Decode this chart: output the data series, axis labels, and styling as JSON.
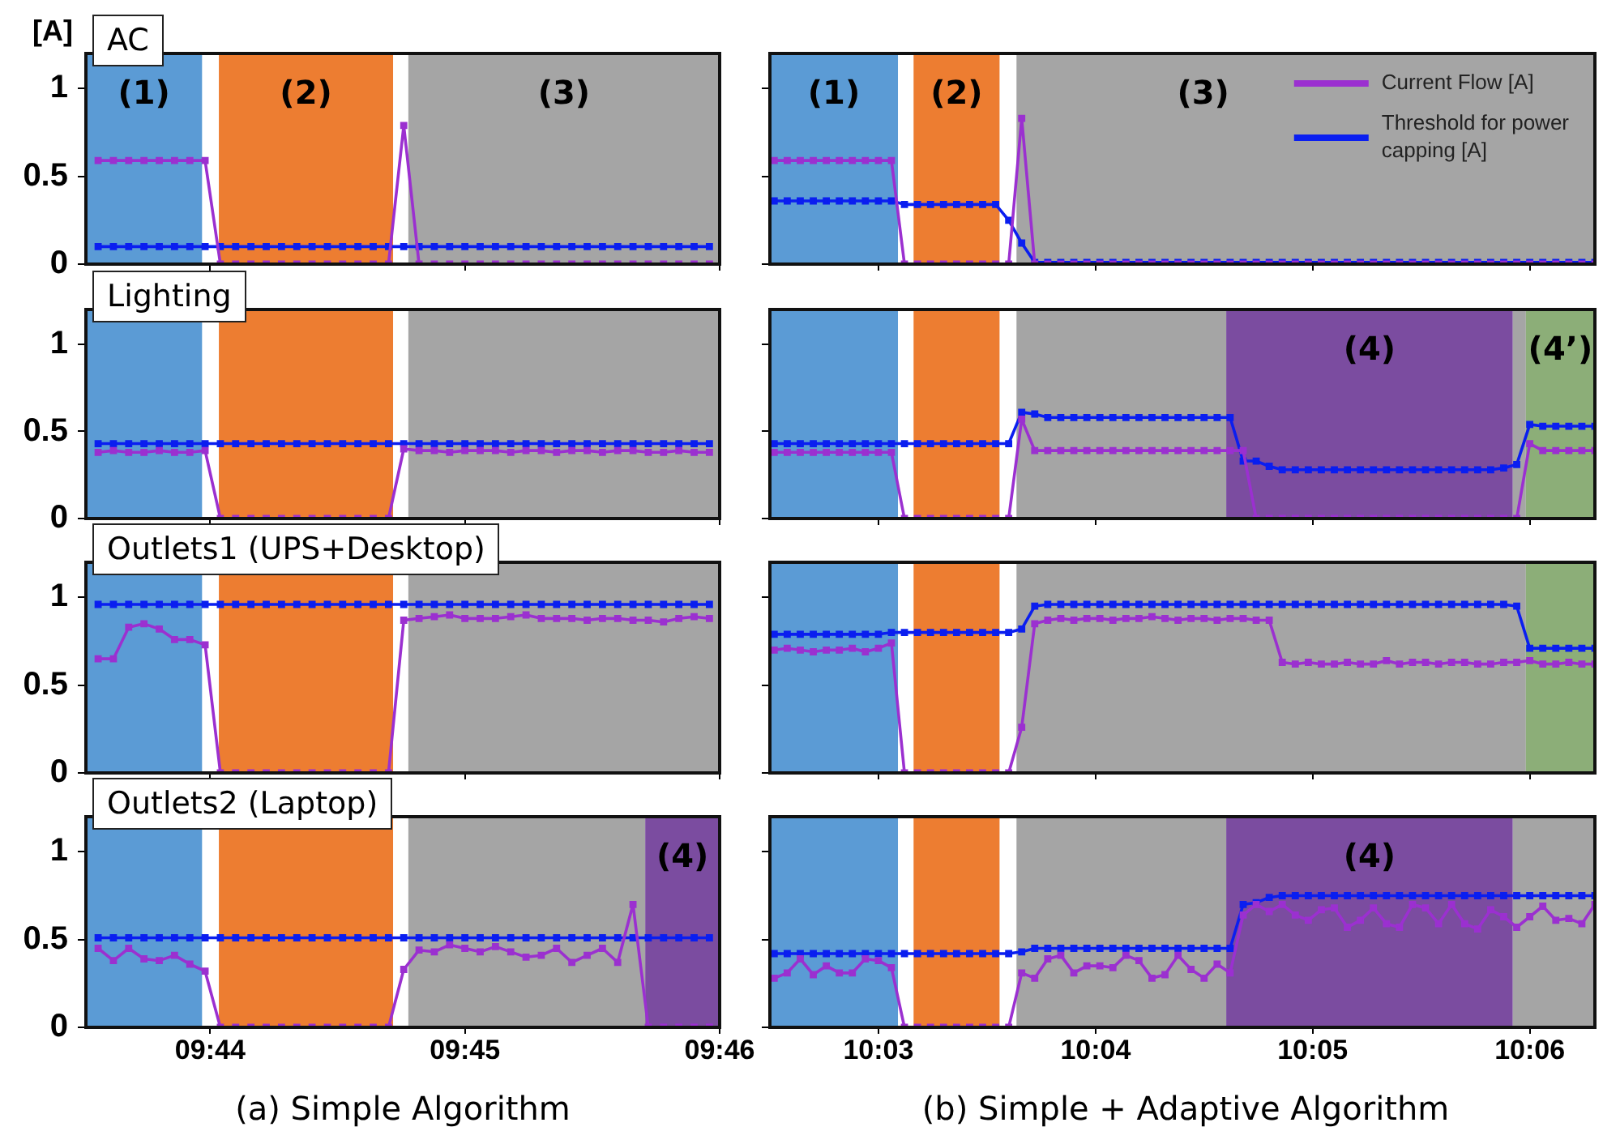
{
  "chart_data": [
    {
      "type": "line",
      "title": "AC",
      "ylabel": "[A]",
      "x": [
        9.726,
        9.727,
        9.728,
        9.729,
        9.73,
        9.731,
        9.732,
        9.733,
        9.734,
        9.735,
        9.736,
        9.737,
        9.738,
        9.739,
        9.74,
        9.741,
        9.742,
        9.743,
        9.744,
        9.745,
        9.746,
        9.747,
        9.748,
        9.749,
        9.75,
        9.751,
        9.752,
        9.753,
        9.754,
        9.755,
        9.756,
        9.757,
        9.758,
        9.759,
        9.76,
        9.761,
        9.762,
        9.763,
        9.764,
        9.765,
        9.766
      ],
      "series": [
        {
          "color": "#9b30d0",
          "values": [
            0.59,
            0.59,
            0.59,
            0.59,
            0.59,
            0.59,
            0.59,
            0.59,
            0,
            0,
            0,
            0,
            0,
            0,
            0,
            0,
            0,
            0,
            0,
            0,
            0.79,
            0,
            0,
            0,
            0,
            0,
            0,
            0,
            0,
            0,
            0,
            0,
            0,
            0,
            0,
            0,
            0,
            0,
            0,
            0,
            0
          ]
        },
        {
          "color": "#0a1ef0",
          "values": [
            0.1,
            0.1,
            0.1,
            0.1,
            0.1,
            0.1,
            0.1,
            0.1,
            0.1,
            0.1,
            0.1,
            0.1,
            0.1,
            0.1,
            0.1,
            0.1,
            0.1,
            0.1,
            0.1,
            0.1,
            0.1,
            0.1,
            0.1,
            0.1,
            0.1,
            0.1,
            0.1,
            0.1,
            0.1,
            0.1,
            0.1,
            0.1,
            0.1,
            0.1,
            0.1,
            0.1,
            0.1,
            0.1,
            0.1,
            0.1,
            0.1
          ]
        }
      ],
      "xlim": [
        9.7252,
        9.76667
      ],
      "xticks": [
        {
          "value": 9.73333,
          "label": null
        },
        {
          "value": 9.75,
          "label": null
        },
        {
          "value": 9.76667,
          "label": null
        }
      ],
      "ylim": [
        0,
        1.2
      ],
      "yticks": [
        0,
        0.5,
        1
      ],
      "tick_labels": "y",
      "marker": "square",
      "line_style": "solid",
      "bands": [
        {
          "axis": "x",
          "from": 9.7252,
          "to": 9.7328,
          "label": "(1)",
          "color": "#5b9bd5"
        },
        {
          "axis": "x",
          "from": 9.7339,
          "to": 9.7453,
          "label": "(2)",
          "color": "#ed7d31"
        },
        {
          "axis": "x",
          "from": 9.7463,
          "to": 9.76667,
          "label": "(3)",
          "color": "#a5a5a5"
        }
      ]
    },
    {
      "type": "line",
      "x": [
        10.042,
        10.043,
        10.044,
        10.045,
        10.046,
        10.047,
        10.048,
        10.049,
        10.05,
        10.051,
        10.052,
        10.053,
        10.054,
        10.055,
        10.056,
        10.057,
        10.058,
        10.059,
        10.06,
        10.061,
        10.062,
        10.063,
        10.064,
        10.065,
        10.066,
        10.067,
        10.068,
        10.069,
        10.07,
        10.071,
        10.072,
        10.073,
        10.074,
        10.075,
        10.076,
        10.077,
        10.078,
        10.079,
        10.08,
        10.081,
        10.082,
        10.083,
        10.084,
        10.085,
        10.086,
        10.087,
        10.088,
        10.089,
        10.09,
        10.091,
        10.092,
        10.093,
        10.094,
        10.095,
        10.096,
        10.097,
        10.098,
        10.099,
        10.1,
        10.101,
        10.102,
        10.103,
        10.104,
        10.105
      ],
      "series": [
        {
          "name": "Current Flow [A]",
          "color": "#9b30d0",
          "values": [
            0.59,
            0.59,
            0.59,
            0.59,
            0.59,
            0.59,
            0.59,
            0.59,
            0.59,
            0.59,
            0,
            0,
            0,
            0,
            0,
            0,
            0,
            0,
            0,
            0.83,
            0,
            0,
            0,
            0,
            0,
            0,
            0,
            0,
            0,
            0,
            0,
            0,
            0,
            0,
            0,
            0,
            0,
            0,
            0,
            0,
            0,
            0,
            0,
            0,
            0,
            0,
            0,
            0,
            0,
            0,
            0,
            0,
            0,
            0,
            0,
            0,
            0,
            0,
            0,
            0,
            0,
            0,
            0,
            0
          ]
        },
        {
          "name": "Threshold for power capping [A]",
          "color": "#0a1ef0",
          "values": [
            0.36,
            0.36,
            0.36,
            0.36,
            0.36,
            0.36,
            0.36,
            0.36,
            0.36,
            0.36,
            0.34,
            0.34,
            0.34,
            0.34,
            0.34,
            0.34,
            0.34,
            0.34,
            0.25,
            0.12,
            0.01,
            0.01,
            0.01,
            0.01,
            0.01,
            0.01,
            0.01,
            0.01,
            0.01,
            0.01,
            0.01,
            0.01,
            0.01,
            0.01,
            0.01,
            0.01,
            0.01,
            0.01,
            0.01,
            0.01,
            0.01,
            0.01,
            0.01,
            0.01,
            0.01,
            0.01,
            0.01,
            0.01,
            0.01,
            0.01,
            0.01,
            0.01,
            0.01,
            0.01,
            0.01,
            0.01,
            0.01,
            0.01,
            0.01,
            0.01,
            0.01,
            0.01,
            0.01,
            0.01
          ]
        }
      ],
      "xlim": [
        10.04167,
        10.105
      ],
      "xticks": [
        {
          "value": 10.05,
          "label": null
        },
        {
          "value": 10.06667,
          "label": null
        },
        {
          "value": 10.08333,
          "label": null
        },
        {
          "value": 10.1,
          "label": null
        }
      ],
      "ylim": [
        0,
        1.2
      ],
      "yticks": [
        0,
        0.5,
        1
      ],
      "tick_labels": false,
      "marker": "square",
      "line_style": "solid",
      "legend": "top right",
      "bands": [
        {
          "axis": "x",
          "from": 10.04167,
          "to": 10.0515,
          "label": "(1)",
          "color": "#5b9bd5"
        },
        {
          "axis": "x",
          "from": 10.0527,
          "to": 10.0593,
          "label": "(2)",
          "color": "#ed7d31"
        },
        {
          "axis": "x",
          "from": 10.0606,
          "to": 10.105,
          "label": "(3)",
          "color": "#a5a5a5"
        }
      ]
    },
    {
      "type": "line",
      "title": "Lighting",
      "x": [
        9.726,
        9.727,
        9.728,
        9.729,
        9.73,
        9.731,
        9.732,
        9.733,
        9.734,
        9.735,
        9.736,
        9.737,
        9.738,
        9.739,
        9.74,
        9.741,
        9.742,
        9.743,
        9.744,
        9.745,
        9.746,
        9.747,
        9.748,
        9.749,
        9.75,
        9.751,
        9.752,
        9.753,
        9.754,
        9.755,
        9.756,
        9.757,
        9.758,
        9.759,
        9.76,
        9.761,
        9.762,
        9.763,
        9.764,
        9.765,
        9.766
      ],
      "series": [
        {
          "color": "#9b30d0",
          "values": [
            0.38,
            0.39,
            0.38,
            0.38,
            0.39,
            0.38,
            0.38,
            0.39,
            0,
            0,
            0,
            0,
            0,
            0,
            0,
            0,
            0,
            0,
            0,
            0,
            0.4,
            0.39,
            0.39,
            0.38,
            0.39,
            0.39,
            0.39,
            0.38,
            0.39,
            0.39,
            0.38,
            0.39,
            0.39,
            0.38,
            0.39,
            0.39,
            0.38,
            0.38,
            0.39,
            0.38,
            0.38
          ]
        },
        {
          "color": "#0a1ef0",
          "values": [
            0.43,
            0.43,
            0.43,
            0.43,
            0.43,
            0.43,
            0.43,
            0.43,
            0.43,
            0.43,
            0.43,
            0.43,
            0.43,
            0.43,
            0.43,
            0.43,
            0.43,
            0.43,
            0.43,
            0.43,
            0.43,
            0.43,
            0.43,
            0.43,
            0.43,
            0.43,
            0.43,
            0.43,
            0.43,
            0.43,
            0.43,
            0.43,
            0.43,
            0.43,
            0.43,
            0.43,
            0.43,
            0.43,
            0.43,
            0.43,
            0.43
          ]
        }
      ],
      "xlim": [
        9.7252,
        9.76667
      ],
      "xticks": [
        {
          "value": 9.73333,
          "label": null
        },
        {
          "value": 9.75,
          "label": null
        },
        {
          "value": 9.76667,
          "label": null
        }
      ],
      "ylim": [
        0,
        1.2
      ],
      "yticks": [
        0,
        0.5,
        1
      ],
      "tick_labels": "y",
      "marker": "square",
      "line_style": "solid",
      "bands": [
        {
          "axis": "x",
          "from": 9.7252,
          "to": 9.7328,
          "color": "#5b9bd5"
        },
        {
          "axis": "x",
          "from": 9.7339,
          "to": 9.7453,
          "color": "#ed7d31"
        },
        {
          "axis": "x",
          "from": 9.7463,
          "to": 9.76667,
          "color": "#a5a5a5"
        }
      ]
    },
    {
      "type": "line",
      "x": [
        10.042,
        10.043,
        10.044,
        10.045,
        10.046,
        10.047,
        10.048,
        10.049,
        10.05,
        10.051,
        10.052,
        10.053,
        10.054,
        10.055,
        10.056,
        10.057,
        10.058,
        10.059,
        10.06,
        10.061,
        10.062,
        10.063,
        10.064,
        10.065,
        10.066,
        10.067,
        10.068,
        10.069,
        10.07,
        10.071,
        10.072,
        10.073,
        10.074,
        10.075,
        10.076,
        10.077,
        10.078,
        10.079,
        10.08,
        10.081,
        10.082,
        10.083,
        10.084,
        10.085,
        10.086,
        10.087,
        10.088,
        10.089,
        10.09,
        10.091,
        10.092,
        10.093,
        10.094,
        10.095,
        10.096,
        10.097,
        10.098,
        10.099,
        10.1,
        10.101,
        10.102,
        10.103,
        10.104,
        10.105
      ],
      "series": [
        {
          "color": "#9b30d0",
          "values": [
            0.38,
            0.38,
            0.38,
            0.38,
            0.38,
            0.38,
            0.38,
            0.38,
            0.38,
            0.38,
            0,
            0,
            0,
            0,
            0,
            0,
            0,
            0,
            0,
            0.57,
            0.39,
            0.39,
            0.39,
            0.39,
            0.39,
            0.39,
            0.39,
            0.39,
            0.39,
            0.39,
            0.39,
            0.39,
            0.39,
            0.39,
            0.39,
            0.39,
            0.39,
            0,
            0,
            0,
            0,
            0,
            0,
            0,
            0,
            0,
            0,
            0,
            0,
            0,
            0,
            0,
            0,
            0,
            0,
            0,
            0,
            0,
            0.43,
            0.39,
            0.39,
            0.39,
            0.39,
            0.39
          ]
        },
        {
          "color": "#0a1ef0",
          "values": [
            0.43,
            0.43,
            0.43,
            0.43,
            0.43,
            0.43,
            0.43,
            0.43,
            0.43,
            0.43,
            0.43,
            0.43,
            0.43,
            0.43,
            0.43,
            0.43,
            0.43,
            0.43,
            0.43,
            0.61,
            0.6,
            0.58,
            0.58,
            0.58,
            0.58,
            0.58,
            0.58,
            0.58,
            0.58,
            0.58,
            0.58,
            0.58,
            0.58,
            0.58,
            0.58,
            0.58,
            0.33,
            0.33,
            0.3,
            0.28,
            0.28,
            0.28,
            0.28,
            0.28,
            0.28,
            0.28,
            0.28,
            0.28,
            0.28,
            0.28,
            0.28,
            0.28,
            0.28,
            0.28,
            0.28,
            0.28,
            0.29,
            0.31,
            0.54,
            0.53,
            0.53,
            0.53,
            0.53,
            0.53
          ]
        }
      ],
      "xlim": [
        10.04167,
        10.105
      ],
      "xticks": [
        {
          "value": 10.05,
          "label": null
        },
        {
          "value": 10.06667,
          "label": null
        },
        {
          "value": 10.08333,
          "label": null
        },
        {
          "value": 10.1,
          "label": null
        }
      ],
      "ylim": [
        0,
        1.2
      ],
      "yticks": [
        0,
        0.5,
        1
      ],
      "tick_labels": false,
      "marker": "square",
      "line_style": "solid",
      "bands": [
        {
          "axis": "x",
          "from": 10.04167,
          "to": 10.0515,
          "color": "#5b9bd5"
        },
        {
          "axis": "x",
          "from": 10.0527,
          "to": 10.0593,
          "color": "#ed7d31"
        },
        {
          "axis": "x",
          "from": 10.0606,
          "to": 10.0767,
          "color": "#a5a5a5"
        },
        {
          "axis": "x",
          "from": 10.0767,
          "to": 10.0987,
          "label": "(4)",
          "color": "#7b4ca0"
        },
        {
          "axis": "x",
          "from": 10.0987,
          "to": 10.0997,
          "color": "#a5a5a5"
        },
        {
          "axis": "x",
          "from": 10.0997,
          "to": 10.105,
          "label": "(4’)",
          "color": "#8cae78"
        }
      ]
    },
    {
      "type": "line",
      "title": "Outlets1 (UPS+Desktop)",
      "x": [
        9.726,
        9.727,
        9.728,
        9.729,
        9.73,
        9.731,
        9.732,
        9.733,
        9.734,
        9.735,
        9.736,
        9.737,
        9.738,
        9.739,
        9.74,
        9.741,
        9.742,
        9.743,
        9.744,
        9.745,
        9.746,
        9.747,
        9.748,
        9.749,
        9.75,
        9.751,
        9.752,
        9.753,
        9.754,
        9.755,
        9.756,
        9.757,
        9.758,
        9.759,
        9.76,
        9.761,
        9.762,
        9.763,
        9.764,
        9.765,
        9.766
      ],
      "series": [
        {
          "color": "#9b30d0",
          "values": [
            0.65,
            0.65,
            0.83,
            0.85,
            0.82,
            0.76,
            0.76,
            0.73,
            0,
            0,
            0,
            0,
            0,
            0,
            0,
            0,
            0,
            0,
            0,
            0,
            0.87,
            0.88,
            0.89,
            0.9,
            0.88,
            0.88,
            0.88,
            0.89,
            0.9,
            0.88,
            0.88,
            0.88,
            0.87,
            0.88,
            0.88,
            0.87,
            0.87,
            0.86,
            0.88,
            0.89,
            0.88
          ]
        },
        {
          "color": "#0a1ef0",
          "values": [
            0.96,
            0.96,
            0.96,
            0.96,
            0.96,
            0.96,
            0.96,
            0.96,
            0.96,
            0.96,
            0.96,
            0.96,
            0.96,
            0.96,
            0.96,
            0.96,
            0.96,
            0.96,
            0.96,
            0.96,
            0.96,
            0.96,
            0.96,
            0.96,
            0.96,
            0.96,
            0.96,
            0.96,
            0.96,
            0.96,
            0.96,
            0.96,
            0.96,
            0.96,
            0.96,
            0.96,
            0.96,
            0.96,
            0.96,
            0.96,
            0.96
          ]
        }
      ],
      "xlim": [
        9.7252,
        9.76667
      ],
      "xticks": [
        {
          "value": 9.73333,
          "label": null
        },
        {
          "value": 9.75,
          "label": null
        },
        {
          "value": 9.76667,
          "label": null
        }
      ],
      "ylim": [
        0,
        1.2
      ],
      "yticks": [
        0,
        0.5,
        1
      ],
      "tick_labels": "y",
      "marker": "square",
      "line_style": "solid",
      "bands": [
        {
          "axis": "x",
          "from": 9.7252,
          "to": 9.7328,
          "color": "#5b9bd5"
        },
        {
          "axis": "x",
          "from": 9.7339,
          "to": 9.7453,
          "color": "#ed7d31"
        },
        {
          "axis": "x",
          "from": 9.7463,
          "to": 9.76667,
          "color": "#a5a5a5"
        }
      ]
    },
    {
      "type": "line",
      "x": [
        10.042,
        10.043,
        10.044,
        10.045,
        10.046,
        10.047,
        10.048,
        10.049,
        10.05,
        10.051,
        10.052,
        10.053,
        10.054,
        10.055,
        10.056,
        10.057,
        10.058,
        10.059,
        10.06,
        10.061,
        10.062,
        10.063,
        10.064,
        10.065,
        10.066,
        10.067,
        10.068,
        10.069,
        10.07,
        10.071,
        10.072,
        10.073,
        10.074,
        10.075,
        10.076,
        10.077,
        10.078,
        10.079,
        10.08,
        10.081,
        10.082,
        10.083,
        10.084,
        10.085,
        10.086,
        10.087,
        10.088,
        10.089,
        10.09,
        10.091,
        10.092,
        10.093,
        10.094,
        10.095,
        10.096,
        10.097,
        10.098,
        10.099,
        10.1,
        10.101,
        10.102,
        10.103,
        10.104,
        10.105
      ],
      "series": [
        {
          "color": "#9b30d0",
          "values": [
            0.7,
            0.71,
            0.7,
            0.69,
            0.7,
            0.7,
            0.71,
            0.69,
            0.71,
            0.74,
            0,
            0,
            0,
            0,
            0,
            0,
            0,
            0,
            0,
            0.26,
            0.85,
            0.87,
            0.88,
            0.87,
            0.88,
            0.88,
            0.87,
            0.88,
            0.88,
            0.89,
            0.88,
            0.87,
            0.88,
            0.88,
            0.87,
            0.88,
            0.88,
            0.87,
            0.87,
            0.63,
            0.62,
            0.63,
            0.62,
            0.62,
            0.63,
            0.62,
            0.62,
            0.64,
            0.62,
            0.63,
            0.63,
            0.62,
            0.63,
            0.63,
            0.62,
            0.62,
            0.63,
            0.63,
            0.64,
            0.62,
            0.62,
            0.63,
            0.62,
            0.62
          ]
        },
        {
          "color": "#0a1ef0",
          "values": [
            0.79,
            0.79,
            0.79,
            0.79,
            0.79,
            0.79,
            0.79,
            0.79,
            0.79,
            0.8,
            0.8,
            0.8,
            0.8,
            0.8,
            0.8,
            0.8,
            0.8,
            0.8,
            0.8,
            0.82,
            0.95,
            0.96,
            0.96,
            0.96,
            0.96,
            0.96,
            0.96,
            0.96,
            0.96,
            0.96,
            0.96,
            0.96,
            0.96,
            0.96,
            0.96,
            0.96,
            0.96,
            0.96,
            0.96,
            0.96,
            0.96,
            0.96,
            0.96,
            0.96,
            0.96,
            0.96,
            0.96,
            0.96,
            0.96,
            0.96,
            0.96,
            0.96,
            0.96,
            0.96,
            0.96,
            0.96,
            0.96,
            0.95,
            0.71,
            0.71,
            0.71,
            0.71,
            0.71,
            0.71
          ]
        }
      ],
      "xlim": [
        10.04167,
        10.105
      ],
      "xticks": [
        {
          "value": 10.05,
          "label": null
        },
        {
          "value": 10.06667,
          "label": null
        },
        {
          "value": 10.08333,
          "label": null
        },
        {
          "value": 10.1,
          "label": null
        }
      ],
      "ylim": [
        0,
        1.2
      ],
      "yticks": [
        0,
        0.5,
        1
      ],
      "tick_labels": false,
      "marker": "square",
      "line_style": "solid",
      "bands": [
        {
          "axis": "x",
          "from": 10.04167,
          "to": 10.0515,
          "color": "#5b9bd5"
        },
        {
          "axis": "x",
          "from": 10.0527,
          "to": 10.0593,
          "color": "#ed7d31"
        },
        {
          "axis": "x",
          "from": 10.0606,
          "to": 10.0997,
          "color": "#a5a5a5"
        },
        {
          "axis": "x",
          "from": 10.0997,
          "to": 10.105,
          "color": "#8cae78"
        }
      ]
    },
    {
      "type": "line",
      "title": "Outlets2 (Laptop)",
      "xlabel": "(a) Simple Algorithm",
      "x": [
        9.726,
        9.727,
        9.728,
        9.729,
        9.73,
        9.731,
        9.732,
        9.733,
        9.734,
        9.735,
        9.736,
        9.737,
        9.738,
        9.739,
        9.74,
        9.741,
        9.742,
        9.743,
        9.744,
        9.745,
        9.746,
        9.747,
        9.748,
        9.749,
        9.75,
        9.751,
        9.752,
        9.753,
        9.754,
        9.755,
        9.756,
        9.757,
        9.758,
        9.759,
        9.76,
        9.761,
        9.762,
        9.763,
        9.764,
        9.765,
        9.766
      ],
      "series": [
        {
          "color": "#9b30d0",
          "values": [
            0.45,
            0.38,
            0.45,
            0.39,
            0.38,
            0.41,
            0.36,
            0.32,
            0,
            0,
            0,
            0,
            0,
            0,
            0,
            0,
            0,
            0,
            0,
            0,
            0.33,
            0.44,
            0.43,
            0.47,
            0.45,
            0.43,
            0.46,
            0.43,
            0.4,
            0.41,
            0.45,
            0.37,
            0.41,
            0.45,
            0.37,
            0.7,
            0,
            0,
            0,
            0,
            0
          ]
        },
        {
          "color": "#0a1ef0",
          "values": [
            0.51,
            0.51,
            0.51,
            0.51,
            0.51,
            0.51,
            0.51,
            0.51,
            0.51,
            0.51,
            0.51,
            0.51,
            0.51,
            0.51,
            0.51,
            0.51,
            0.51,
            0.51,
            0.51,
            0.51,
            0.51,
            0.51,
            0.51,
            0.51,
            0.51,
            0.51,
            0.51,
            0.51,
            0.51,
            0.51,
            0.51,
            0.51,
            0.51,
            0.51,
            0.51,
            0.51,
            0.51,
            0.51,
            0.51,
            0.51,
            0.51
          ]
        }
      ],
      "xlim": [
        9.7252,
        9.76667
      ],
      "xticks": [
        {
          "value": 9.73333,
          "label": "09:44"
        },
        {
          "value": 9.75,
          "label": "09:45"
        },
        {
          "value": 9.76667,
          "label": "09:46"
        }
      ],
      "ylim": [
        0,
        1.2
      ],
      "yticks": [
        0,
        0.5,
        1
      ],
      "marker": "square",
      "line_style": "solid",
      "bands": [
        {
          "axis": "x",
          "from": 9.7252,
          "to": 9.7328,
          "color": "#5b9bd5"
        },
        {
          "axis": "x",
          "from": 9.7339,
          "to": 9.7453,
          "color": "#ed7d31"
        },
        {
          "axis": "x",
          "from": 9.7463,
          "to": 9.7618,
          "color": "#a5a5a5"
        },
        {
          "axis": "x",
          "from": 9.7618,
          "to": 9.76667,
          "label": "(4)",
          "color": "#7b4ca0"
        }
      ]
    },
    {
      "type": "line",
      "xlabel": "(b) Simple + Adaptive Algorithm",
      "x": [
        10.042,
        10.043,
        10.044,
        10.045,
        10.046,
        10.047,
        10.048,
        10.049,
        10.05,
        10.051,
        10.052,
        10.053,
        10.054,
        10.055,
        10.056,
        10.057,
        10.058,
        10.059,
        10.06,
        10.061,
        10.062,
        10.063,
        10.064,
        10.065,
        10.066,
        10.067,
        10.068,
        10.069,
        10.07,
        10.071,
        10.072,
        10.073,
        10.074,
        10.075,
        10.076,
        10.077,
        10.078,
        10.079,
        10.08,
        10.081,
        10.082,
        10.083,
        10.084,
        10.085,
        10.086,
        10.087,
        10.088,
        10.089,
        10.09,
        10.091,
        10.092,
        10.093,
        10.094,
        10.095,
        10.096,
        10.097,
        10.098,
        10.099,
        10.1,
        10.101,
        10.102,
        10.103,
        10.104,
        10.105
      ],
      "series": [
        {
          "color": "#9b30d0",
          "values": [
            0.28,
            0.31,
            0.39,
            0.3,
            0.35,
            0.31,
            0.31,
            0.39,
            0.38,
            0.34,
            0,
            0,
            0,
            0,
            0,
            0,
            0,
            0,
            0,
            0.31,
            0.28,
            0.39,
            0.41,
            0.31,
            0.35,
            0.35,
            0.34,
            0.41,
            0.38,
            0.28,
            0.3,
            0.41,
            0.33,
            0.28,
            0.36,
            0.31,
            0.64,
            0.7,
            0.66,
            0.7,
            0.64,
            0.61,
            0.67,
            0.68,
            0.57,
            0.61,
            0.68,
            0.59,
            0.57,
            0.7,
            0.68,
            0.59,
            0.7,
            0.59,
            0.56,
            0.67,
            0.63,
            0.57,
            0.63,
            0.69,
            0.61,
            0.62,
            0.59,
            0.7
          ]
        },
        {
          "color": "#0a1ef0",
          "values": [
            0.42,
            0.42,
            0.42,
            0.42,
            0.42,
            0.42,
            0.42,
            0.42,
            0.42,
            0.42,
            0.42,
            0.42,
            0.42,
            0.42,
            0.42,
            0.42,
            0.42,
            0.42,
            0.42,
            0.43,
            0.45,
            0.45,
            0.45,
            0.45,
            0.45,
            0.45,
            0.45,
            0.45,
            0.45,
            0.45,
            0.45,
            0.45,
            0.45,
            0.45,
            0.45,
            0.45,
            0.7,
            0.71,
            0.74,
            0.75,
            0.75,
            0.75,
            0.75,
            0.75,
            0.75,
            0.75,
            0.75,
            0.75,
            0.75,
            0.75,
            0.75,
            0.75,
            0.75,
            0.75,
            0.75,
            0.75,
            0.75,
            0.75,
            0.75,
            0.75,
            0.75,
            0.75,
            0.75,
            0.75
          ]
        }
      ],
      "xlim": [
        10.04167,
        10.105
      ],
      "xticks": [
        {
          "value": 10.05,
          "label": "10:03"
        },
        {
          "value": 10.06667,
          "label": "10:04"
        },
        {
          "value": 10.08333,
          "label": "10:05"
        },
        {
          "value": 10.1,
          "label": "10:06"
        }
      ],
      "ylim": [
        0,
        1.2
      ],
      "yticks": [
        0,
        0.5,
        1
      ],
      "tick_labels": "x",
      "marker": "square",
      "line_style": "solid",
      "bands": [
        {
          "axis": "x",
          "from": 10.04167,
          "to": 10.0515,
          "color": "#5b9bd5"
        },
        {
          "axis": "x",
          "from": 10.0527,
          "to": 10.0593,
          "color": "#ed7d31"
        },
        {
          "axis": "x",
          "from": 10.0606,
          "to": 10.0767,
          "color": "#a5a5a5"
        },
        {
          "axis": "x",
          "from": 10.0767,
          "to": 10.0987,
          "label": "(4)",
          "color": "#7b4ca0"
        },
        {
          "axis": "x",
          "from": 10.0987,
          "to": 10.105,
          "color": "#a5a5a5"
        }
      ]
    }
  ]
}
